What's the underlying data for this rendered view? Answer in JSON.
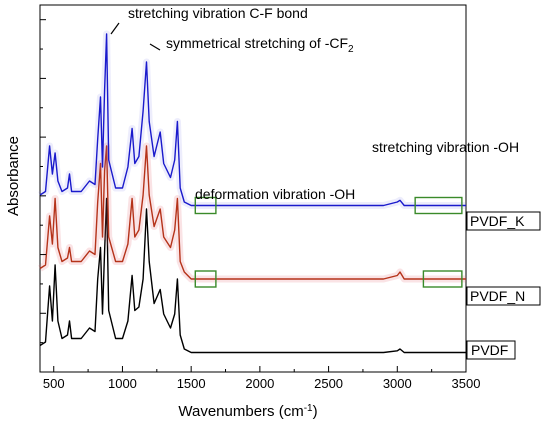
{
  "chart_data": {
    "type": "line",
    "title": "",
    "xlabel": "Wavenumbers (cm",
    "xlabel_sup": "-1",
    "xlabel_tail": ")",
    "ylabel": "Absorbance",
    "xlim": [
      400,
      3500
    ],
    "ylim": [
      0,
      1
    ],
    "x_tick_labels": [
      "500",
      "1000",
      "1500",
      "2000",
      "2500",
      "3000",
      "3500"
    ],
    "x_tick_values": [
      500,
      1000,
      1500,
      2000,
      2500,
      3000,
      3500
    ],
    "y_tick_labels_shown": false,
    "grid": false,
    "legend": "series labels in boxes at right end of each trace",
    "series": [
      {
        "name": "PVDF",
        "color": "#000000",
        "points": [
          [
            400,
            0.03
          ],
          [
            440,
            0.04
          ],
          [
            470,
            0.2
          ],
          [
            490,
            0.1
          ],
          [
            510,
            0.26
          ],
          [
            530,
            0.1
          ],
          [
            560,
            0.05
          ],
          [
            600,
            0.06
          ],
          [
            615,
            0.1
          ],
          [
            630,
            0.05
          ],
          [
            700,
            0.05
          ],
          [
            760,
            0.08
          ],
          [
            800,
            0.07
          ],
          [
            820,
            0.22
          ],
          [
            840,
            0.31
          ],
          [
            855,
            0.12
          ],
          [
            870,
            0.3
          ],
          [
            885,
            0.45
          ],
          [
            900,
            0.13
          ],
          [
            950,
            0.05
          ],
          [
            1000,
            0.05
          ],
          [
            1040,
            0.1
          ],
          [
            1070,
            0.23
          ],
          [
            1090,
            0.13
          ],
          [
            1120,
            0.14
          ],
          [
            1150,
            0.22
          ],
          [
            1175,
            0.42
          ],
          [
            1195,
            0.27
          ],
          [
            1230,
            0.15
          ],
          [
            1275,
            0.19
          ],
          [
            1300,
            0.12
          ],
          [
            1350,
            0.08
          ],
          [
            1380,
            0.12
          ],
          [
            1400,
            0.22
          ],
          [
            1420,
            0.06
          ],
          [
            1450,
            0.02
          ],
          [
            1500,
            0.01
          ],
          [
            1700,
            0.01
          ],
          [
            2000,
            0.01
          ],
          [
            2500,
            0.01
          ],
          [
            2900,
            0.01
          ],
          [
            3000,
            0.015
          ],
          [
            3020,
            0.02
          ],
          [
            3050,
            0.01
          ],
          [
            3500,
            0.01
          ]
        ]
      },
      {
        "name": "PVDF_N",
        "color": "#b5331a",
        "points": [
          [
            400,
            0.25
          ],
          [
            440,
            0.26
          ],
          [
            470,
            0.4
          ],
          [
            490,
            0.32
          ],
          [
            510,
            0.45
          ],
          [
            530,
            0.31
          ],
          [
            560,
            0.27
          ],
          [
            600,
            0.28
          ],
          [
            615,
            0.31
          ],
          [
            630,
            0.27
          ],
          [
            700,
            0.27
          ],
          [
            760,
            0.3
          ],
          [
            800,
            0.29
          ],
          [
            820,
            0.44
          ],
          [
            840,
            0.55
          ],
          [
            855,
            0.34
          ],
          [
            870,
            0.53
          ],
          [
            885,
            0.6
          ],
          [
            900,
            0.34
          ],
          [
            950,
            0.27
          ],
          [
            1000,
            0.27
          ],
          [
            1040,
            0.32
          ],
          [
            1070,
            0.45
          ],
          [
            1090,
            0.34
          ],
          [
            1120,
            0.36
          ],
          [
            1150,
            0.46
          ],
          [
            1175,
            0.6
          ],
          [
            1195,
            0.46
          ],
          [
            1230,
            0.37
          ],
          [
            1275,
            0.42
          ],
          [
            1300,
            0.34
          ],
          [
            1350,
            0.31
          ],
          [
            1380,
            0.36
          ],
          [
            1400,
            0.45
          ],
          [
            1420,
            0.27
          ],
          [
            1450,
            0.24
          ],
          [
            1500,
            0.22
          ],
          [
            1700,
            0.22
          ],
          [
            2000,
            0.22
          ],
          [
            2500,
            0.22
          ],
          [
            2900,
            0.22
          ],
          [
            3000,
            0.23
          ],
          [
            3020,
            0.24
          ],
          [
            3050,
            0.22
          ],
          [
            3500,
            0.22
          ]
        ]
      },
      {
        "name": "PVDF_K",
        "color": "#1a1acc",
        "points": [
          [
            400,
            0.46
          ],
          [
            440,
            0.47
          ],
          [
            470,
            0.6
          ],
          [
            490,
            0.52
          ],
          [
            510,
            0.58
          ],
          [
            530,
            0.5
          ],
          [
            560,
            0.47
          ],
          [
            600,
            0.48
          ],
          [
            615,
            0.52
          ],
          [
            630,
            0.47
          ],
          [
            700,
            0.47
          ],
          [
            760,
            0.5
          ],
          [
            800,
            0.49
          ],
          [
            820,
            0.62
          ],
          [
            840,
            0.74
          ],
          [
            855,
            0.54
          ],
          [
            870,
            0.76
          ],
          [
            885,
            0.92
          ],
          [
            900,
            0.56
          ],
          [
            950,
            0.48
          ],
          [
            1000,
            0.48
          ],
          [
            1040,
            0.54
          ],
          [
            1070,
            0.65
          ],
          [
            1090,
            0.55
          ],
          [
            1120,
            0.57
          ],
          [
            1150,
            0.7
          ],
          [
            1175,
            0.84
          ],
          [
            1195,
            0.67
          ],
          [
            1230,
            0.57
          ],
          [
            1275,
            0.64
          ],
          [
            1300,
            0.55
          ],
          [
            1350,
            0.51
          ],
          [
            1380,
            0.56
          ],
          [
            1400,
            0.67
          ],
          [
            1420,
            0.48
          ],
          [
            1450,
            0.44
          ],
          [
            1500,
            0.43
          ],
          [
            1700,
            0.43
          ],
          [
            2000,
            0.43
          ],
          [
            2500,
            0.43
          ],
          [
            2900,
            0.43
          ],
          [
            3000,
            0.44
          ],
          [
            3020,
            0.445
          ],
          [
            3050,
            0.43
          ],
          [
            3500,
            0.43
          ]
        ]
      }
    ],
    "annotations": [
      {
        "text": "stretching vibration C-F bond"
      },
      {
        "text": "symmetrical stretching of -CF",
        "sub": "2"
      },
      {
        "text": "deformation vibration -OH"
      },
      {
        "text": "stretching vibration -OH"
      }
    ],
    "highlight_color": "#3a8a2a"
  }
}
